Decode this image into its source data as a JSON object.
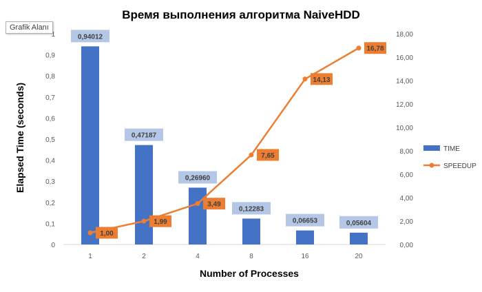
{
  "tooltip": "Grafik Alanı",
  "chart_data": {
    "type": "bar+line",
    "title": "Время выполнения алгоритма NaiveHDD",
    "xlabel": "Number of Processes",
    "ylabel": "Elapsed Time (seconds)",
    "categories": [
      "1",
      "2",
      "4",
      "8",
      "16",
      "20"
    ],
    "ylim": [
      0,
      1
    ],
    "y_ticks": [
      "0",
      "0,1",
      "0,2",
      "0,3",
      "0,4",
      "0,5",
      "0,6",
      "0,7",
      "0,8",
      "0,9",
      "1"
    ],
    "y2lim": [
      0,
      18
    ],
    "y2_ticks": [
      "0,00",
      "2,00",
      "4,00",
      "6,00",
      "8,00",
      "10,00",
      "12,00",
      "14,00",
      "16,00",
      "18,00"
    ],
    "series": [
      {
        "name": "TIME",
        "type": "bar",
        "axis": "left",
        "color": "#4472c4",
        "values": [
          0.94012,
          0.47187,
          0.2696,
          0.12283,
          0.06653,
          0.05604
        ],
        "labels": [
          "0,94012",
          "0,47187",
          "0,26960",
          "0,12283",
          "0,06653",
          "0,05604"
        ],
        "label_bg": "#b4c7e7"
      },
      {
        "name": "SPEEDUP",
        "type": "line",
        "axis": "right",
        "color": "#ed7d31",
        "values": [
          1.0,
          1.99,
          3.49,
          7.65,
          14.13,
          16.78
        ],
        "labels": [
          "1,00",
          "1,99",
          "3,49",
          "7,65",
          "14,13",
          "16,78"
        ],
        "label_bg": "#ed7d31"
      }
    ],
    "legend_position": "right",
    "grid": false
  }
}
